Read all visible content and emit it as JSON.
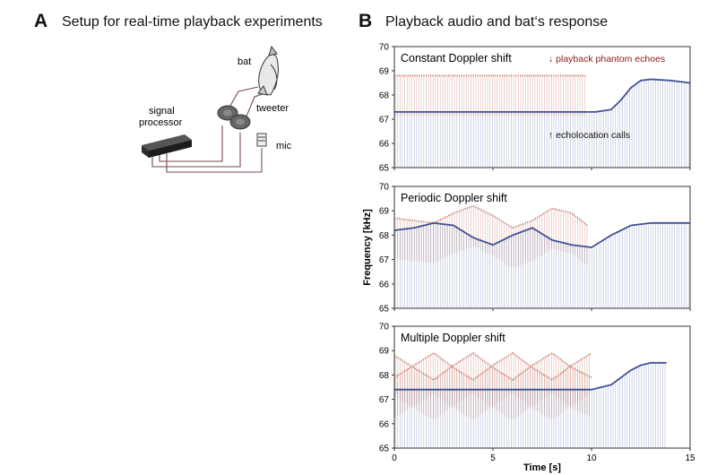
{
  "panel_a": {
    "letter": "A",
    "title": "Setup for real-time playback experiments",
    "labels": {
      "bat": "bat",
      "tweeter": "tweeter",
      "signal_processor_line1": "signal",
      "signal_processor_line2": "processor",
      "mic": "mic"
    }
  },
  "panel_b": {
    "letter": "B",
    "title": "Playback audio and bat‘s response"
  },
  "colors": {
    "echo": "#b5533e",
    "call": "#2c3f8a",
    "frame": "#333333"
  },
  "chart_data": [
    {
      "type": "line",
      "title": "Constant Doppler shift",
      "xlim": [
        0,
        15
      ],
      "ylim": [
        65,
        70
      ],
      "yticks": [
        65,
        66,
        67,
        68,
        69,
        70
      ],
      "xticks": [
        0,
        5,
        10,
        15
      ],
      "xlabel": "",
      "ylabel": "",
      "annotations": [
        "↓ playback phantom echoes",
        "↑ echolocation calls"
      ],
      "series": [
        {
          "role": "echo",
          "x": [
            0,
            9.7
          ],
          "y": [
            68.8,
            68.8
          ]
        },
        {
          "role": "call",
          "x": [
            0,
            9.7,
            10.2,
            11.0,
            11.5,
            12.0,
            12.5,
            13.0,
            14.0,
            15.0
          ],
          "y": [
            67.3,
            67.3,
            67.3,
            67.4,
            67.8,
            68.3,
            68.6,
            68.65,
            68.6,
            68.5
          ]
        }
      ]
    },
    {
      "type": "line",
      "title": "Periodic Doppler shift",
      "xlim": [
        0,
        15
      ],
      "ylim": [
        65,
        70
      ],
      "yticks": [
        65,
        66,
        67,
        68,
        69,
        70
      ],
      "xticks": [
        0,
        5,
        10,
        15
      ],
      "xlabel": "",
      "ylabel": "Frequency [kHz]",
      "annotations": [],
      "series": [
        {
          "role": "echo",
          "x": [
            0,
            1.0,
            2.0,
            3.0,
            4.0,
            5.0,
            6.0,
            7.0,
            8.0,
            9.0,
            9.8
          ],
          "y": [
            68.7,
            68.6,
            68.5,
            68.9,
            69.2,
            68.8,
            68.3,
            68.6,
            69.1,
            68.9,
            68.4
          ]
        },
        {
          "role": "call",
          "x": [
            0,
            1.0,
            2.0,
            3.0,
            4.0,
            5.0,
            6.0,
            7.0,
            8.0,
            9.0,
            10.0,
            11.0,
            12.0,
            13.0,
            14.0,
            15.0
          ],
          "y": [
            68.2,
            68.3,
            68.5,
            68.4,
            67.9,
            67.6,
            68.0,
            68.3,
            67.8,
            67.6,
            67.5,
            68.0,
            68.4,
            68.5,
            68.5,
            68.5
          ]
        }
      ]
    },
    {
      "type": "line",
      "title": "Multiple Doppler shift",
      "xlim": [
        0,
        15
      ],
      "ylim": [
        65,
        70
      ],
      "yticks": [
        65,
        66,
        67,
        68,
        69,
        70
      ],
      "xticks": [
        0,
        5,
        10,
        15
      ],
      "xlabel": "Time [s]",
      "ylabel": "",
      "annotations": [],
      "series": [
        {
          "role": "echo",
          "x": [
            0,
            1.0,
            2.0,
            3.0,
            4.0,
            5.0,
            6.0,
            7.0,
            8.0,
            9.0,
            10.0
          ],
          "y": [
            68.8,
            68.3,
            67.8,
            68.4,
            68.9,
            68.3,
            67.8,
            68.4,
            68.9,
            68.3,
            67.9
          ]
        },
        {
          "role": "echo",
          "x": [
            0,
            1.0,
            2.0,
            3.0,
            4.0,
            5.0,
            6.0,
            7.0,
            8.0,
            9.0,
            10.0
          ],
          "y": [
            67.9,
            68.4,
            68.9,
            68.3,
            67.8,
            68.4,
            68.9,
            68.3,
            67.8,
            68.4,
            68.9
          ]
        },
        {
          "role": "call",
          "x": [
            0,
            3.0,
            6.0,
            9.0,
            10.0,
            11.0,
            12.0,
            12.5,
            13.0,
            13.8
          ],
          "y": [
            67.4,
            67.4,
            67.4,
            67.4,
            67.4,
            67.6,
            68.2,
            68.4,
            68.5,
            68.5
          ]
        }
      ]
    }
  ]
}
